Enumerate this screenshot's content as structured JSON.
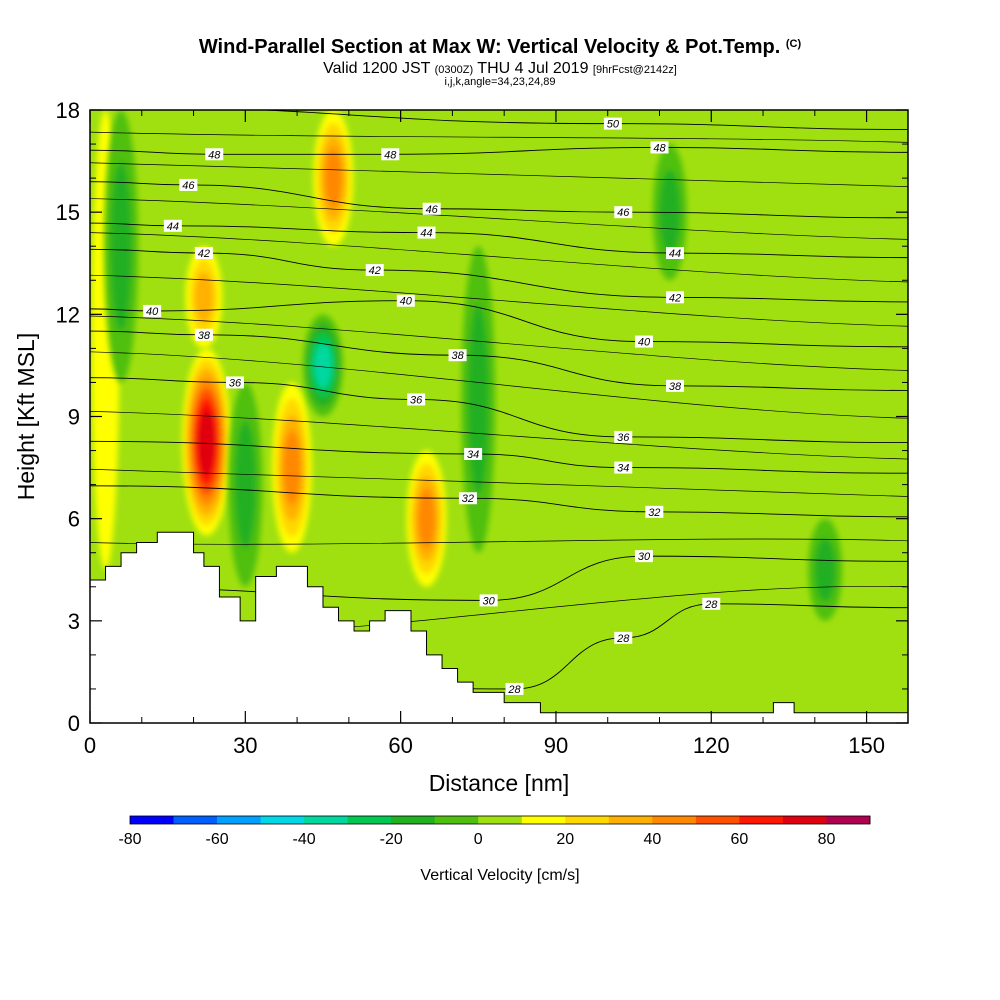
{
  "header": {
    "title": "Wind-Parallel Section at Max W: Vertical Velocity & Pot.Temp.",
    "copyright": "(C)",
    "valid_prefix": "Valid 1200 JST",
    "valid_utc": "(0300Z)",
    "valid_date": "THU 4 Jul 2019",
    "forecast": "[9hrFcst@2142z]",
    "grid_info": "i,j,k,angle=34,23,24,89"
  },
  "chart_data": {
    "type": "contour",
    "xlabel": "Distance [nm]",
    "ylabel": "Height [Kft MSL]",
    "xlim": [
      0,
      158
    ],
    "ylim": [
      0,
      18
    ],
    "x_ticks": [
      0,
      30,
      60,
      90,
      120,
      150
    ],
    "y_ticks": [
      0,
      3,
      6,
      9,
      12,
      15,
      18
    ],
    "x_tick_labels": [
      "0",
      "30",
      "60",
      "90",
      "120",
      "150"
    ],
    "y_tick_labels": [
      "0",
      "3",
      "6",
      "9",
      "12",
      "15",
      "18"
    ],
    "colorbar": {
      "title": "Vertical Velocity [cm/s]",
      "min": -80,
      "max": 90,
      "step": 10,
      "tick_labels": [
        "-80",
        "-60",
        "-40",
        "-20",
        "0",
        "20",
        "40",
        "60",
        "80"
      ],
      "colors": [
        "#0000ff",
        "#0060ff",
        "#00a0ff",
        "#00d8e8",
        "#00d8a0",
        "#00c850",
        "#20b020",
        "#50c010",
        "#a0e010",
        "#ffff00",
        "#ffd800",
        "#ffb000",
        "#ff8800",
        "#ff5000",
        "#ff1800",
        "#e00010",
        "#b00050",
        "#700090"
      ]
    },
    "velocity_plumes": [
      {
        "x": 3,
        "y": [
          4.5,
          18
        ],
        "w": 0,
        "kind": "updraft-weak"
      },
      {
        "x": 6,
        "y": [
          10,
          18
        ],
        "w": -20,
        "kind": "downdraft"
      },
      {
        "x": 22.5,
        "y": [
          5.5,
          11
        ],
        "w": 70,
        "kind": "updraft"
      },
      {
        "x": 22,
        "y": [
          11,
          14
        ],
        "w": 30,
        "kind": "updraft"
      },
      {
        "x": 30,
        "y": [
          4,
          10
        ],
        "w": -20,
        "kind": "downdraft"
      },
      {
        "x": 39,
        "y": [
          5,
          10
        ],
        "w": 40,
        "kind": "updraft"
      },
      {
        "x": 45,
        "y": [
          9,
          12
        ],
        "w": -40,
        "kind": "downdraft"
      },
      {
        "x": 47,
        "y": [
          14,
          18
        ],
        "w": 40,
        "kind": "updraft"
      },
      {
        "x": 65,
        "y": [
          4,
          8
        ],
        "w": 40,
        "kind": "updraft"
      },
      {
        "x": 75,
        "y": [
          5,
          14
        ],
        "w": -20,
        "kind": "downdraft"
      },
      {
        "x": 112,
        "y": [
          13,
          17
        ],
        "w": -20,
        "kind": "downdraft"
      },
      {
        "x": 142,
        "y": [
          3,
          6
        ],
        "w": -20,
        "kind": "downdraft"
      }
    ],
    "isentropes": [
      {
        "theta": 28,
        "label_x": 82,
        "label_y": 1.0
      },
      {
        "theta": 28,
        "label_x": 103,
        "label_y": 2.5
      },
      {
        "theta": 28,
        "label_x": 120,
        "label_y": 3.5
      },
      {
        "theta": 30,
        "label_x": 77,
        "label_y": 3.6
      },
      {
        "theta": 30,
        "label_x": 107,
        "label_y": 4.9
      },
      {
        "theta": 32,
        "label_x": 73,
        "label_y": 6.6
      },
      {
        "theta": 32,
        "label_x": 109,
        "label_y": 6.2
      },
      {
        "theta": 34,
        "label_x": 74,
        "label_y": 7.9
      },
      {
        "theta": 34,
        "label_x": 103,
        "label_y": 7.5
      },
      {
        "theta": 36,
        "label_x": 28,
        "label_y": 10.0
      },
      {
        "theta": 36,
        "label_x": 63,
        "label_y": 9.5
      },
      {
        "theta": 36,
        "label_x": 103,
        "label_y": 8.4
      },
      {
        "theta": 38,
        "label_x": 22,
        "label_y": 11.4
      },
      {
        "theta": 38,
        "label_x": 71,
        "label_y": 10.8
      },
      {
        "theta": 38,
        "label_x": 113,
        "label_y": 9.9
      },
      {
        "theta": 40,
        "label_x": 12,
        "label_y": 12.1
      },
      {
        "theta": 40,
        "label_x": 61,
        "label_y": 12.4
      },
      {
        "theta": 40,
        "label_x": 107,
        "label_y": 11.2
      },
      {
        "theta": 42,
        "label_x": 22,
        "label_y": 13.8
      },
      {
        "theta": 42,
        "label_x": 55,
        "label_y": 13.3
      },
      {
        "theta": 42,
        "label_x": 113,
        "label_y": 12.5
      },
      {
        "theta": 44,
        "label_x": 16,
        "label_y": 14.6
      },
      {
        "theta": 44,
        "label_x": 65,
        "label_y": 14.4
      },
      {
        "theta": 44,
        "label_x": 113,
        "label_y": 13.8
      },
      {
        "theta": 46,
        "label_x": 19,
        "label_y": 15.8
      },
      {
        "theta": 46,
        "label_x": 66,
        "label_y": 15.1
      },
      {
        "theta": 46,
        "label_x": 103,
        "label_y": 15.0
      },
      {
        "theta": 48,
        "label_x": 24,
        "label_y": 16.7
      },
      {
        "theta": 48,
        "label_x": 58,
        "label_y": 16.7
      },
      {
        "theta": 48,
        "label_x": 110,
        "label_y": 16.9
      },
      {
        "theta": 50,
        "label_x": 101,
        "label_y": 17.6
      }
    ],
    "terrain": [
      [
        0,
        4.2
      ],
      [
        3,
        4.2
      ],
      [
        3,
        4.6
      ],
      [
        6,
        4.6
      ],
      [
        6,
        5.0
      ],
      [
        9,
        5.0
      ],
      [
        9,
        5.3
      ],
      [
        13,
        5.3
      ],
      [
        13,
        5.6
      ],
      [
        20,
        5.6
      ],
      [
        20,
        5.0
      ],
      [
        22,
        5.0
      ],
      [
        22,
        4.6
      ],
      [
        25,
        4.6
      ],
      [
        25,
        3.7
      ],
      [
        29,
        3.7
      ],
      [
        29,
        3.0
      ],
      [
        32,
        3.0
      ],
      [
        32,
        4.3
      ],
      [
        36,
        4.3
      ],
      [
        36,
        4.6
      ],
      [
        42,
        4.6
      ],
      [
        42,
        4.0
      ],
      [
        45,
        4.0
      ],
      [
        45,
        3.4
      ],
      [
        48,
        3.4
      ],
      [
        48,
        3.0
      ],
      [
        51,
        3.0
      ],
      [
        51,
        2.7
      ],
      [
        54,
        2.7
      ],
      [
        54,
        3.0
      ],
      [
        57,
        3.0
      ],
      [
        57,
        3.3
      ],
      [
        62,
        3.3
      ],
      [
        62,
        2.7
      ],
      [
        65,
        2.7
      ],
      [
        65,
        2.0
      ],
      [
        68,
        2.0
      ],
      [
        68,
        1.6
      ],
      [
        71,
        1.6
      ],
      [
        71,
        1.2
      ],
      [
        74,
        1.2
      ],
      [
        74,
        0.9
      ],
      [
        80,
        0.9
      ],
      [
        80,
        0.6
      ],
      [
        87,
        0.6
      ],
      [
        87,
        0.3
      ],
      [
        132,
        0.3
      ],
      [
        132,
        0.6
      ],
      [
        136,
        0.6
      ],
      [
        136,
        0.3
      ],
      [
        158,
        0.3
      ],
      [
        158,
        0
      ],
      [
        0,
        0
      ]
    ]
  }
}
